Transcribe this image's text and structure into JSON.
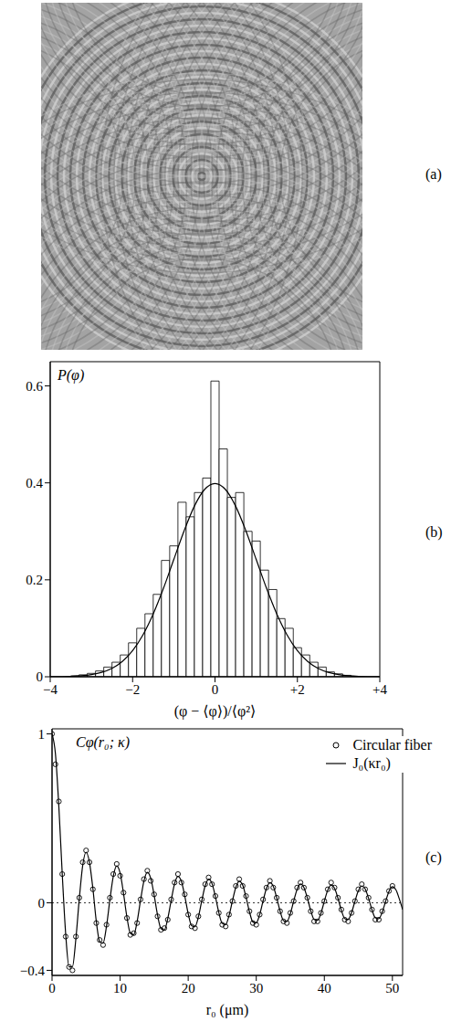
{
  "chart_data": [
    {
      "type": "image",
      "annotations": [
        "(a)"
      ]
    },
    {
      "type": "histogram",
      "annotations": [
        "(b)"
      ],
      "ylabel": "P(φ)",
      "xlabel": "(φ − ⟨φ⟩)/⟨φ²⟩",
      "color": "#000000",
      "bins": [
        -3.5,
        -3.3,
        -3.1,
        -2.9,
        -2.7,
        -2.5,
        -2.3,
        -2.1,
        -1.9,
        -1.7,
        -1.5,
        -1.3,
        -1.1,
        -0.9,
        -0.7,
        -0.5,
        -0.3,
        -0.1,
        0.1,
        0.3,
        0.5,
        0.7,
        0.9,
        1.1,
        1.3,
        1.5,
        1.7,
        1.9,
        2.1,
        2.3,
        2.5,
        2.7,
        2.9,
        3.1,
        3.3,
        3.5
      ],
      "values": [
        0.002,
        0.004,
        0.007,
        0.012,
        0.02,
        0.03,
        0.045,
        0.07,
        0.1,
        0.13,
        0.17,
        0.24,
        0.27,
        0.36,
        0.33,
        0.38,
        0.41,
        0.61,
        0.47,
        0.37,
        0.38,
        0.3,
        0.28,
        0.22,
        0.18,
        0.12,
        0.1,
        0.06,
        0.045,
        0.03,
        0.02,
        0.01,
        0.006,
        0.003,
        0.001
      ],
      "line": {
        "type": "line",
        "color": "#000000",
        "line_style": "solid",
        "x": [
          -4,
          -3.75,
          -3.5,
          -3.25,
          -3,
          -2.75,
          -2.5,
          -2.25,
          -2,
          -1.75,
          -1.5,
          -1.25,
          -1,
          -0.75,
          -0.5,
          -0.25,
          0,
          0.25,
          0.5,
          0.75,
          1,
          1.25,
          1.5,
          1.75,
          2,
          2.25,
          2.5,
          2.75,
          3,
          3.25,
          3.5,
          3.75,
          4
        ],
        "values": [
          0.0001,
          0.0004,
          0.0009,
          0.002,
          0.0044,
          0.0091,
          0.0175,
          0.0317,
          0.054,
          0.0863,
          0.1295,
          0.1826,
          0.242,
          0.3011,
          0.3521,
          0.3867,
          0.3989,
          0.3867,
          0.3521,
          0.3011,
          0.242,
          0.1826,
          0.1295,
          0.0863,
          0.054,
          0.0317,
          0.0175,
          0.0091,
          0.0044,
          0.002,
          0.0009,
          0.0004,
          0.0001
        ]
      },
      "xlim": [
        -4,
        4
      ],
      "xticks": [
        {
          "value": -4,
          "label": "−4"
        },
        {
          "value": -2,
          "label": "−2"
        },
        0,
        {
          "value": 2,
          "label": "+2"
        },
        {
          "value": 4,
          "label": "+4"
        }
      ],
      "ylim": [
        0,
        0.65
      ],
      "yticks": [
        0,
        0.2,
        0.4,
        0.6
      ],
      "grid": false
    },
    {
      "type": "scatter",
      "annotations": [
        "(c)"
      ],
      "ylabel": "Cφ(r₀; κ)",
      "xlabel": "r₀ (μm)",
      "legend": "upper right",
      "grid": false,
      "xlim": [
        0,
        51.5
      ],
      "xticks": [
        0,
        10,
        20,
        30,
        40,
        50
      ],
      "ylim": [
        -0.43,
        1.03
      ],
      "yticks": [
        {
          "value": -0.4,
          "label": "−0.4"
        },
        0,
        1
      ],
      "series": [
        {
          "name": "Circular fiber",
          "type": "scatter",
          "marker": "open_circle",
          "color": "#000000",
          "x": [
            0,
            0.5,
            1,
            1.5,
            2,
            2.5,
            3,
            3.5,
            4,
            4.5,
            5,
            5.5,
            6,
            6.5,
            7,
            7.5,
            8,
            8.5,
            9,
            9.5,
            10,
            10.5,
            11,
            11.5,
            12,
            12.5,
            13,
            13.5,
            14,
            14.5,
            15,
            15.5,
            16,
            16.5,
            17,
            17.5,
            18,
            18.5,
            19,
            19.5,
            20,
            20.5,
            21,
            21.5,
            22,
            22.5,
            23,
            23.5,
            24,
            24.5,
            25,
            25.5,
            26,
            26.5,
            27,
            27.5,
            28,
            28.5,
            29,
            29.5,
            30,
            30.5,
            31,
            31.5,
            32,
            32.5,
            33,
            33.5,
            34,
            34.5,
            35,
            35.5,
            36,
            36.5,
            37,
            37.5,
            38,
            38.5,
            39,
            39.5,
            40,
            40.5,
            41,
            41.5,
            42,
            42.5,
            43,
            43.5,
            44,
            44.5,
            45,
            45.5,
            46,
            46.5,
            47,
            47.5,
            48,
            48.5,
            49,
            49.5,
            50
          ],
          "values": [
            1,
            0.82,
            0.6,
            0.17,
            -0.2,
            -0.38,
            -0.4,
            -0.2,
            0.03,
            0.24,
            0.31,
            0.24,
            0.08,
            -0.12,
            -0.22,
            -0.25,
            -0.13,
            0.03,
            0.17,
            0.23,
            0.16,
            0.06,
            -0.09,
            -0.19,
            -0.18,
            -0.12,
            0.02,
            0.14,
            0.19,
            0.13,
            0.05,
            -0.08,
            -0.16,
            -0.15,
            -0.1,
            0.02,
            0.12,
            0.17,
            0.12,
            0.05,
            -0.07,
            -0.14,
            -0.15,
            -0.08,
            0.02,
            0.11,
            0.15,
            0.11,
            0.04,
            -0.06,
            -0.13,
            -0.14,
            -0.07,
            0.01,
            0.1,
            0.14,
            0.1,
            0.04,
            -0.05,
            -0.12,
            -0.13,
            -0.07,
            0.02,
            0.09,
            0.13,
            0.09,
            0.03,
            -0.05,
            -0.11,
            -0.12,
            -0.06,
            0.01,
            0.09,
            0.12,
            0.09,
            0.03,
            -0.05,
            -0.11,
            -0.11,
            -0.06,
            0.01,
            0.08,
            0.12,
            0.09,
            0.03,
            -0.04,
            -0.1,
            -0.11,
            -0.06,
            0.01,
            0.08,
            0.11,
            0.08,
            0.03,
            -0.04,
            -0.1,
            -0.1,
            -0.05,
            0.01,
            0.07,
            0.1
          ]
        },
        {
          "name": "J₀(κr₀)",
          "type": "line",
          "line_style": "solid",
          "color": "#000000",
          "x": [
            0,
            0.5,
            1,
            1.5,
            2,
            2.5,
            3,
            3.5,
            4,
            4.5,
            5,
            5.5,
            6,
            6.5,
            7,
            7.5,
            8,
            8.5,
            9,
            9.5,
            10,
            10.5,
            11,
            11.5,
            12,
            12.5,
            13,
            13.5,
            14,
            14.5,
            15,
            15.5,
            16,
            16.5,
            17,
            17.5,
            18,
            18.5,
            19,
            19.5,
            20,
            20.5,
            21,
            21.5,
            22,
            22.5,
            23,
            23.5,
            24,
            24.5,
            25,
            25.5,
            26,
            26.5,
            27,
            27.5,
            28,
            28.5,
            29,
            29.5,
            30,
            30.5,
            31,
            31.5,
            32,
            32.5,
            33,
            33.5,
            34,
            34.5,
            35,
            35.5,
            36,
            36.5,
            37,
            37.5,
            38,
            38.5,
            39,
            39.5,
            40,
            40.5,
            41,
            41.5,
            42,
            42.5,
            43,
            43.5,
            44,
            44.5,
            45,
            45.5,
            46,
            46.5,
            47,
            47.5,
            48,
            48.5,
            49,
            49.5,
            50,
            50.5,
            51,
            51.5
          ],
          "values": [
            1,
            0.882,
            0.569,
            0.17,
            -0.182,
            -0.379,
            -0.378,
            -0.214,
            0.022,
            0.22,
            0.3,
            0.239,
            0.085,
            -0.109,
            -0.23,
            -0.239,
            -0.139,
            0.018,
            0.158,
            0.218,
            0.176,
            0.056,
            -0.085,
            -0.18,
            -0.189,
            -0.111,
            0.015,
            0.129,
            0.18,
            0.145,
            0.045,
            -0.073,
            -0.153,
            -0.161,
            -0.094,
            0.014,
            0.113,
            0.156,
            0.127,
            0.04,
            -0.064,
            -0.135,
            -0.142,
            -0.084,
            0.013,
            0.101,
            0.14,
            0.114,
            0.036,
            -0.058,
            -0.122,
            -0.129,
            -0.076,
            0.011,
            0.092,
            0.128,
            0.105,
            0.033,
            -0.053,
            -0.113,
            -0.119,
            -0.07,
            0.011,
            0.085,
            0.119,
            0.097,
            0.03,
            -0.049,
            -0.105,
            -0.111,
            -0.065,
            0.01,
            0.08,
            0.111,
            0.091,
            0.029,
            -0.046,
            -0.099,
            -0.104,
            -0.062,
            0.009,
            0.075,
            0.105,
            0.086,
            0.027,
            -0.044,
            -0.093,
            -0.099,
            -0.058,
            0.009,
            0.071,
            0.1,
            0.082,
            0.026,
            -0.042,
            -0.089,
            -0.094,
            -0.056,
            0.008,
            0.068,
            0.095,
            0.078,
            0.025,
            -0.04
          ]
        }
      ]
    }
  ]
}
